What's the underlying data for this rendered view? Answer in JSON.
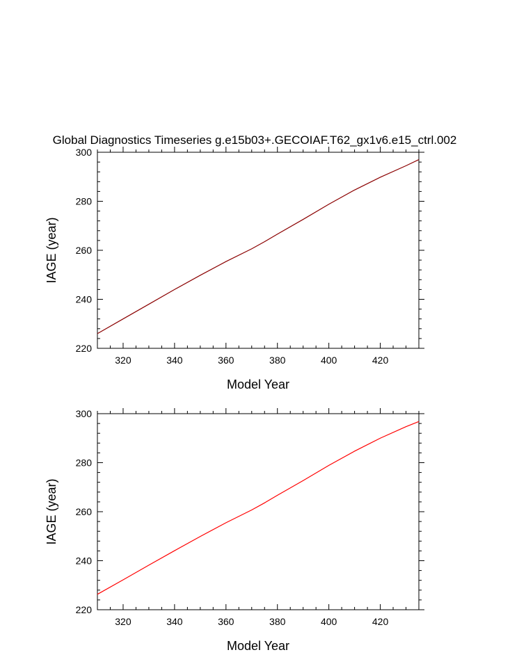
{
  "chart_data": [
    {
      "type": "line",
      "title": "Global Diagnostics Timeseries g.e15b03+.GECOIAF.T62_gx1v6.e15_ctrl.002",
      "xlabel": "Model Year",
      "ylabel": "IAGE (year)",
      "xlim": [
        310,
        435
      ],
      "ylim": [
        220,
        300
      ],
      "xticks": [
        320,
        340,
        360,
        380,
        400,
        420
      ],
      "yticks": [
        220,
        240,
        260,
        280,
        300
      ],
      "grid": false,
      "series": [
        {
          "color": "#8b0000",
          "x": [
            310,
            320,
            330,
            340,
            350,
            360,
            370,
            375,
            380,
            390,
            400,
            410,
            420,
            430,
            435
          ],
          "y": [
            226,
            232,
            238,
            244,
            249.8,
            255.4,
            260.6,
            263.5,
            266.6,
            272.6,
            278.8,
            284.6,
            289.8,
            294.5,
            297
          ]
        }
      ]
    },
    {
      "type": "line",
      "title": "",
      "xlabel": "Model Year",
      "ylabel": "IAGE (year)",
      "xlim": [
        310,
        435
      ],
      "ylim": [
        220,
        300
      ],
      "xticks": [
        320,
        340,
        360,
        380,
        400,
        420
      ],
      "yticks": [
        220,
        240,
        260,
        280,
        300
      ],
      "grid": false,
      "series": [
        {
          "color": "#ff0000",
          "x": [
            310,
            320,
            330,
            340,
            350,
            360,
            370,
            375,
            380,
            390,
            400,
            410,
            420,
            430,
            435
          ],
          "y": [
            226.3,
            232.2,
            238.2,
            244.1,
            249.9,
            255.5,
            260.7,
            263.6,
            266.7,
            272.7,
            278.9,
            284.7,
            290,
            294.7,
            296.8
          ]
        }
      ]
    }
  ]
}
